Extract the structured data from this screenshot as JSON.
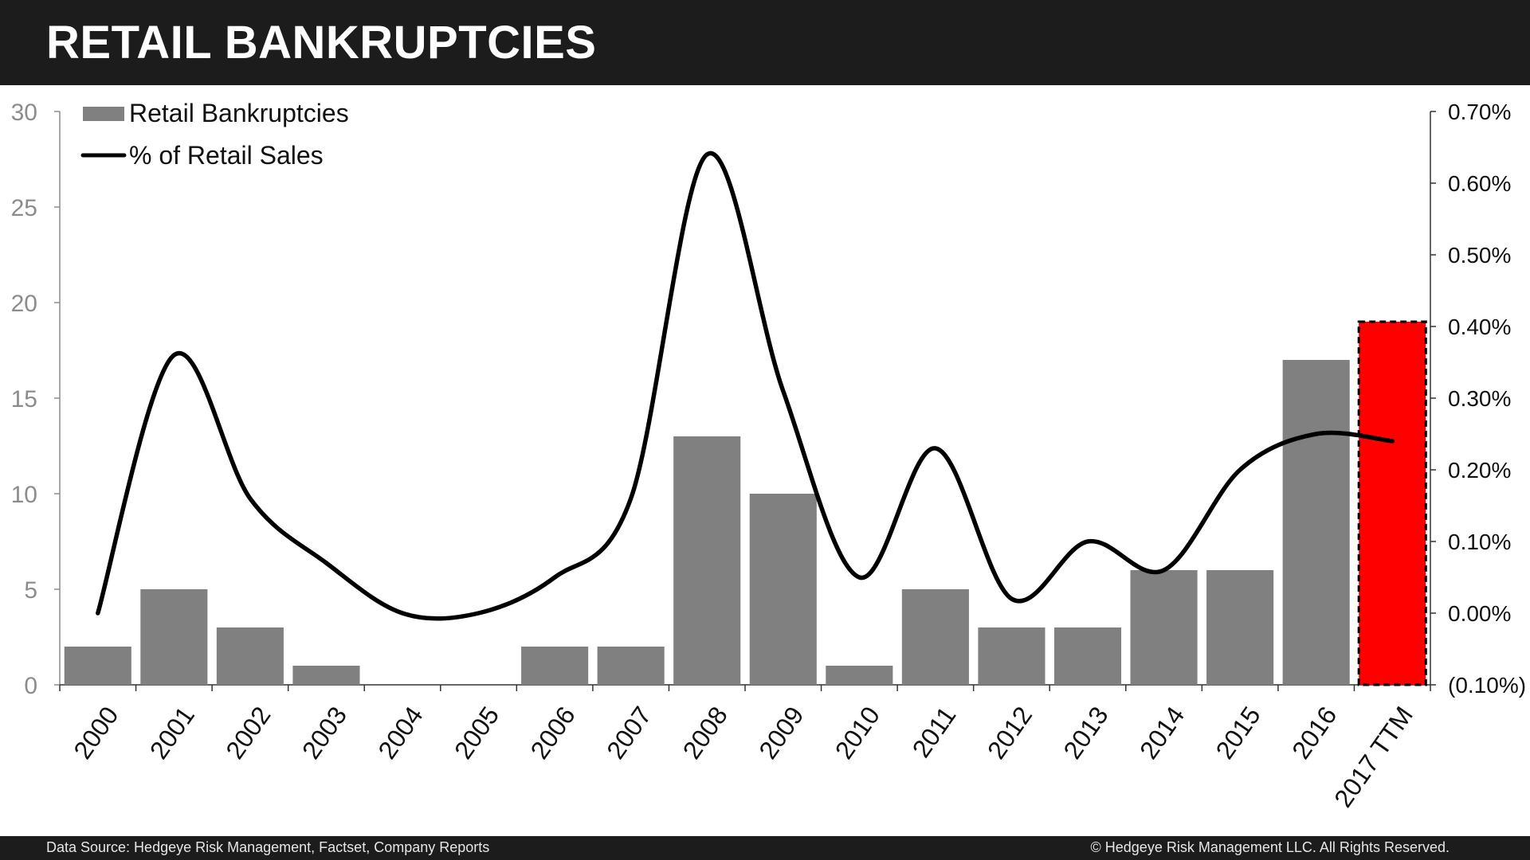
{
  "header": {
    "title": "RETAIL BANKRUPTCIES"
  },
  "footer": {
    "source": "Data Source: Hedgeye Risk Management, Factset, Company Reports",
    "copyright": "© Hedgeye Risk Management LLC. All Rights Reserved."
  },
  "colors": {
    "header_bg": "#1c1c1c",
    "bar": "#808080",
    "highlight_bar": "#ff0000",
    "line": "#000000"
  },
  "chart_data": {
    "type": "bar",
    "categories": [
      "2000",
      "2001",
      "2002",
      "2003",
      "2004",
      "2005",
      "2006",
      "2007",
      "2008",
      "2009",
      "2010",
      "2011",
      "2012",
      "2013",
      "2014",
      "2015",
      "2016",
      "2017 TTM"
    ],
    "series": [
      {
        "name": "Retail Bankruptcies",
        "type": "bar",
        "axis": "left",
        "values": [
          2,
          5,
          3,
          1,
          0,
          0,
          2,
          2,
          13,
          10,
          1,
          5,
          3,
          3,
          6,
          6,
          17,
          19
        ],
        "highlight_index": 17,
        "highlight_style": "red fill, dashed black outline"
      },
      {
        "name": "% of Retail Sales",
        "type": "line",
        "axis": "right",
        "smooth": true,
        "values": [
          0.0,
          0.0036,
          0.0016,
          0.0007,
          0.0,
          0.0,
          0.0005,
          0.0016,
          0.0064,
          0.0031,
          0.0005,
          0.0023,
          0.0002,
          0.001,
          0.0006,
          0.002,
          0.0025,
          0.0024
        ]
      }
    ],
    "y_left": {
      "ylim": [
        0,
        30
      ],
      "ticks": [
        0,
        5,
        10,
        15,
        20,
        25,
        30
      ],
      "tick_labels": [
        "0",
        "5",
        "10",
        "15",
        "20",
        "25",
        "30"
      ]
    },
    "y_right": {
      "ylim": [
        -0.001,
        0.007
      ],
      "ticks": [
        -0.001,
        0,
        0.001,
        0.002,
        0.003,
        0.004,
        0.005,
        0.006,
        0.007
      ],
      "tick_labels": [
        "(0.10%)",
        "0.00%",
        "0.10%",
        "0.20%",
        "0.30%",
        "0.40%",
        "0.50%",
        "0.60%",
        "0.70%"
      ]
    },
    "legend": {
      "position": "top-left",
      "entries": [
        "Retail Bankruptcies",
        "% of Retail Sales"
      ]
    },
    "grid": false
  }
}
